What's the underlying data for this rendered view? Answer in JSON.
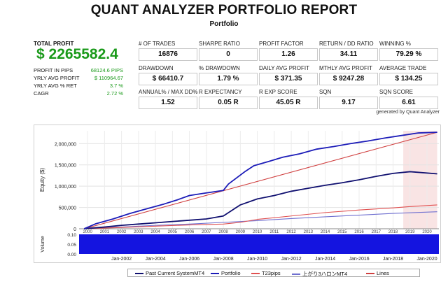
{
  "header": {
    "title": "QUANT ANALYZER PORTFOLIO REPORT",
    "subtitle": "Portfolio"
  },
  "summary": {
    "total_profit_label": "TOTAL PROFIT",
    "total_profit_value": "$ 2265582.4",
    "rows": [
      {
        "label": "PROFIT IN PIPS",
        "value": "68124.6 PIPS"
      },
      {
        "label": "YRLY AVG PROFIT",
        "value": "$ 110964.67"
      },
      {
        "label": "YRLY AVG % RET",
        "value": "3.7 %"
      },
      {
        "label": "CAGR",
        "value": "2.72 %"
      }
    ]
  },
  "stats": [
    {
      "label": "# OF TRADES",
      "value": "16876"
    },
    {
      "label": "SHARPE RATIO",
      "value": "0"
    },
    {
      "label": "PROFIT FACTOR",
      "value": "1.26"
    },
    {
      "label": "RETURN / DD RATIO",
      "value": "34.11"
    },
    {
      "label": "WINNING %",
      "value": "79.29 %"
    },
    {
      "label": "DRAWDOWN",
      "value": "$ 66410.7"
    },
    {
      "label": "% DRAWDOWN",
      "value": "1.79 %"
    },
    {
      "label": "DAILY AVG PROFIT",
      "value": "$ 371.35"
    },
    {
      "label": "MTHLY AVG PROFIT",
      "value": "$ 9247.28"
    },
    {
      "label": "AVERAGE TRADE",
      "value": "$ 134.25"
    },
    {
      "label": "ANNUAL% / MAX DD%",
      "value": "1.52"
    },
    {
      "label": "R EXPECTANCY",
      "value": "0.05 R"
    },
    {
      "label": "R EXP SCORE",
      "value": "45.05 R"
    },
    {
      "label": "SQN",
      "value": "9.17"
    },
    {
      "label": "SQN SCORE",
      "value": "6.61"
    }
  ],
  "generated_by": "generated by Quant Analyzer",
  "chart_data": {
    "type": "line",
    "ylabel": "Equity ($)",
    "ylim": [
      0,
      2300000
    ],
    "y_ticks": [
      "0",
      "500,000",
      "1,000,000",
      "1,500,000",
      "2,000,000"
    ],
    "y_tick_values": [
      0,
      500000,
      1000000,
      1500000,
      2000000
    ],
    "xlim": [
      1999.5,
      2020.7
    ],
    "year_labels": [
      "2000",
      "2001",
      "2002",
      "2003",
      "2004",
      "2005",
      "2006",
      "2007",
      "2008",
      "2009",
      "2010",
      "2011",
      "2012",
      "2013",
      "2014",
      "2015",
      "2016",
      "2017",
      "2018",
      "2019",
      "2020"
    ],
    "year_label_values": [
      2000,
      2001,
      2002,
      2003,
      2004,
      2005,
      2006,
      2007,
      2008,
      2009,
      2010,
      2011,
      2012,
      2013,
      2014,
      2015,
      2016,
      2017,
      2018,
      2019,
      2020
    ],
    "nav_labels": [
      "Jan-2002",
      "Jan-2004",
      "Jan-2006",
      "Jan-2008",
      "Jan-2010",
      "Jan-2012",
      "Jan-2014",
      "Jan-2016",
      "Jan-2018",
      "Jan-2020"
    ],
    "nav_label_values": [
      2002,
      2004,
      2006,
      2008,
      2010,
      2012,
      2014,
      2016,
      2018,
      2020
    ],
    "shaded_range": [
      2018.6,
      2020.6
    ],
    "volume": {
      "ylabel": "Volume",
      "y_ticks": [
        "0.10",
        "0.05",
        "0.00"
      ],
      "y_tick_values": [
        0.1,
        0.05,
        0.0
      ],
      "ylim": [
        0,
        0.1
      ],
      "color": "#1414e0"
    },
    "series": [
      {
        "name": "Portfolio",
        "color": "#1c1cb8",
        "x": [
          1999.8,
          2000.5,
          2001.5,
          2002.5,
          2003.5,
          2004.5,
          2005.3,
          2006,
          2006.8,
          2007.5,
          2008,
          2008.3,
          2008.8,
          2009.3,
          2009.8,
          2010.5,
          2011.5,
          2012.5,
          2013.5,
          2014.5,
          2015.5,
          2016.5,
          2017.5,
          2018.5,
          2019.5,
          2020.6
        ],
        "y": [
          0,
          120000,
          230000,
          360000,
          470000,
          580000,
          680000,
          780000,
          830000,
          870000,
          900000,
          1050000,
          1200000,
          1350000,
          1480000,
          1560000,
          1680000,
          1760000,
          1870000,
          1930000,
          2000000,
          2060000,
          2130000,
          2190000,
          2250000,
          2265582
        ]
      },
      {
        "name": "Past Current SystemMT4",
        "color": "#101070",
        "x": [
          1999.8,
          2001,
          2002,
          2003,
          2004,
          2005,
          2006,
          2007,
          2008,
          2009,
          2010,
          2011,
          2012,
          2013,
          2014,
          2015,
          2016,
          2017,
          2018,
          2019,
          2020.6
        ],
        "y": [
          0,
          40000,
          80000,
          110000,
          140000,
          170000,
          200000,
          230000,
          300000,
          560000,
          700000,
          780000,
          880000,
          950000,
          1020000,
          1080000,
          1150000,
          1230000,
          1300000,
          1340000,
          1290000
        ]
      },
      {
        "name": "T23pips",
        "color": "#e05050",
        "x": [
          1999.8,
          2002,
          2004,
          2006,
          2008,
          2009,
          2010,
          2012,
          2014,
          2016,
          2018,
          2019,
          2020.6
        ],
        "y": [
          0,
          30000,
          60000,
          90000,
          110000,
          150000,
          220000,
          300000,
          380000,
          440000,
          490000,
          520000,
          560000
        ]
      },
      {
        "name": "上がり3ハロンMT4",
        "color": "#7070d0",
        "x": [
          1999.8,
          2002,
          2004,
          2006,
          2008,
          2010,
          2012,
          2014,
          2016,
          2018,
          2020.6
        ],
        "y": [
          0,
          40000,
          80000,
          110000,
          150000,
          190000,
          240000,
          280000,
          320000,
          360000,
          400000
        ]
      },
      {
        "name": "Lines",
        "color": "#d04040",
        "x": [
          1999.8,
          2020.6
        ],
        "y": [
          0,
          2265582
        ]
      }
    ]
  }
}
